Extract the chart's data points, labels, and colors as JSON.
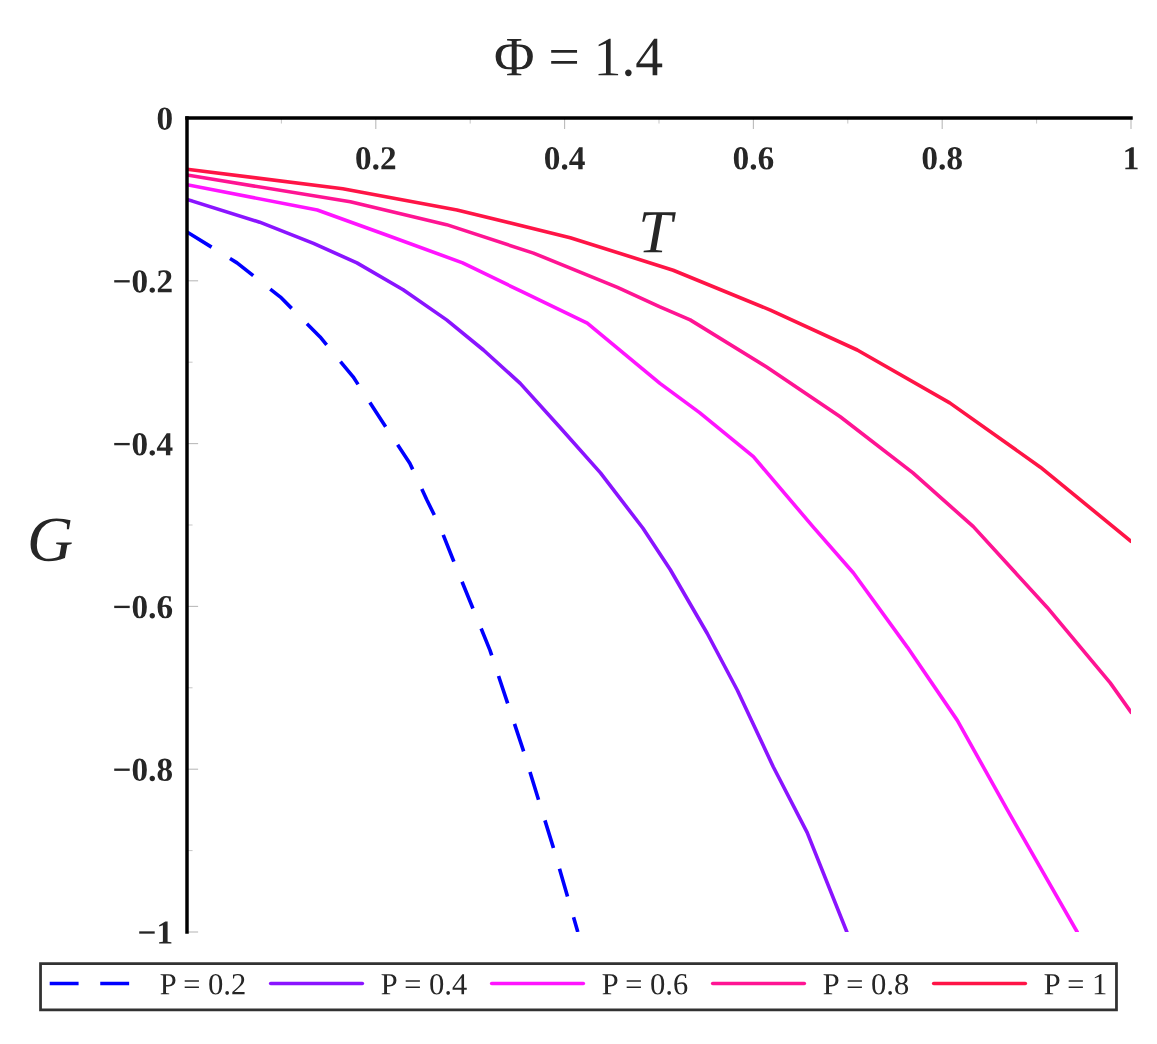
{
  "chart_data": {
    "type": "line",
    "title": "Φ = 1.4",
    "xlabel": "T",
    "ylabel": "G",
    "xlim": [
      0,
      1
    ],
    "ylim": [
      -1,
      0
    ],
    "xticks": [
      {
        "value": 0.2,
        "label": "0.2"
      },
      {
        "value": 0.4,
        "label": "0.4"
      },
      {
        "value": 0.6,
        "label": "0.6"
      },
      {
        "value": 0.8,
        "label": "0.8"
      },
      {
        "value": 1,
        "label": "1"
      }
    ],
    "yticks": [
      {
        "value": 0,
        "label": "0"
      },
      {
        "value": -0.2,
        "label": "−0.2"
      },
      {
        "value": -0.4,
        "label": "−0.4"
      },
      {
        "value": -0.6,
        "label": "−0.6"
      },
      {
        "value": -0.8,
        "label": "−0.8"
      },
      {
        "value": -1,
        "label": "−1"
      }
    ],
    "grid": false,
    "legend": "bottom",
    "series": [
      {
        "name": "P = 0.2",
        "color": "#0000ff",
        "line_style": "dashed",
        "x": [
          0,
          0.053,
          0.099,
          0.141,
          0.176,
          0.208,
          0.236,
          0.254,
          0.268,
          0.282,
          0.321,
          0.356,
          0.388,
          0.414
        ],
        "values": [
          -0.14,
          -0.178,
          -0.22,
          -0.269,
          -0.318,
          -0.375,
          -0.424,
          -0.469,
          -0.502,
          -0.543,
          -0.654,
          -0.776,
          -0.896,
          -1
        ]
      },
      {
        "name": "P = 0.4",
        "color": "#8a14ff",
        "line_style": "solid",
        "x": [
          0,
          0.077,
          0.134,
          0.18,
          0.229,
          0.275,
          0.314,
          0.353,
          0.395,
          0.438,
          0.483,
          0.512,
          0.551,
          0.583,
          0.621,
          0.657,
          0.699
        ],
        "values": [
          -0.1,
          -0.128,
          -0.154,
          -0.178,
          -0.211,
          -0.248,
          -0.285,
          -0.326,
          -0.38,
          -0.436,
          -0.504,
          -0.555,
          -0.633,
          -0.703,
          -0.797,
          -0.878,
          -1
        ]
      },
      {
        "name": "P = 0.6",
        "color": "#ff14ff",
        "line_style": "solid",
        "x": [
          0,
          0.138,
          0.212,
          0.292,
          0.356,
          0.424,
          0.501,
          0.543,
          0.6,
          0.663,
          0.706,
          0.763,
          0.816,
          0.869,
          0.943
        ],
        "values": [
          -0.082,
          -0.113,
          -0.144,
          -0.178,
          -0.214,
          -0.252,
          -0.326,
          -0.362,
          -0.416,
          -0.502,
          -0.559,
          -0.65,
          -0.74,
          -0.85,
          -1
        ]
      },
      {
        "name": "P = 0.8",
        "color": "#ff1493",
        "line_style": "solid",
        "x": [
          0,
          0.173,
          0.275,
          0.367,
          0.456,
          0.501,
          0.533,
          0.614,
          0.692,
          0.769,
          0.833,
          0.911,
          0.978,
          1
        ],
        "values": [
          -0.07,
          -0.103,
          -0.131,
          -0.166,
          -0.208,
          -0.232,
          -0.248,
          -0.306,
          -0.367,
          -0.436,
          -0.502,
          -0.601,
          -0.694,
          -0.73
        ]
      },
      {
        "name": "P = 1",
        "color": "#ff1446",
        "line_style": "solid",
        "x": [
          0,
          0.165,
          0.286,
          0.406,
          0.515,
          0.618,
          0.71,
          0.808,
          0.904,
          1
        ],
        "values": [
          -0.063,
          -0.087,
          -0.113,
          -0.147,
          -0.187,
          -0.236,
          -0.285,
          -0.35,
          -0.429,
          -0.52
        ]
      }
    ]
  }
}
